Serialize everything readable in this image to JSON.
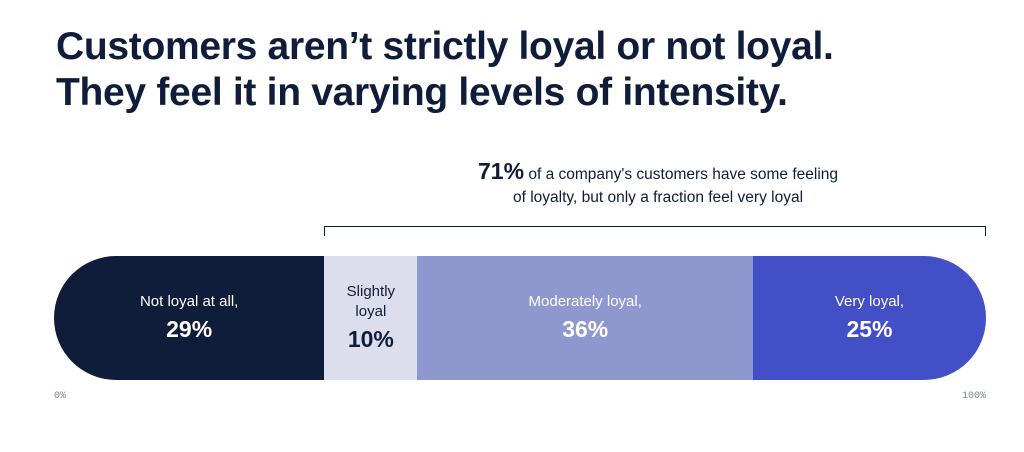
{
  "chart_data": {
    "type": "bar",
    "orientation": "horizontal-stacked",
    "title_lines": [
      "Customers aren’t strictly loyal or not loyal.",
      "They feel it in varying levels of intensity."
    ],
    "annotation": {
      "highlight": "71%",
      "line1": "of a company's customers have some feeling",
      "line2": "of loyalty, but only a fraction feel very loyal",
      "bracket_range": [
        29,
        100
      ]
    },
    "segments": [
      {
        "label_lines": [
          "Not loyal at all,"
        ],
        "value_label": "29%",
        "value": 29,
        "color": "#0f1d3a",
        "text_color": "#ffffff"
      },
      {
        "label_lines": [
          "Slightly",
          "loyal"
        ],
        "value_label": "10%",
        "value": 10,
        "color": "#dcdeee",
        "text_color": "#0f1d3a"
      },
      {
        "label_lines": [
          "Moderately loyal,"
        ],
        "value_label": "36%",
        "value": 36,
        "color": "#8f97cf",
        "text_color": "#ffffff"
      },
      {
        "label_lines": [
          "Very loyal,"
        ],
        "value_label": "25%",
        "value": 25,
        "color": "#434fc6",
        "text_color": "#ffffff"
      }
    ],
    "axis": {
      "min_label": "0%",
      "max_label": "100%",
      "range": [
        0,
        100
      ]
    }
  }
}
